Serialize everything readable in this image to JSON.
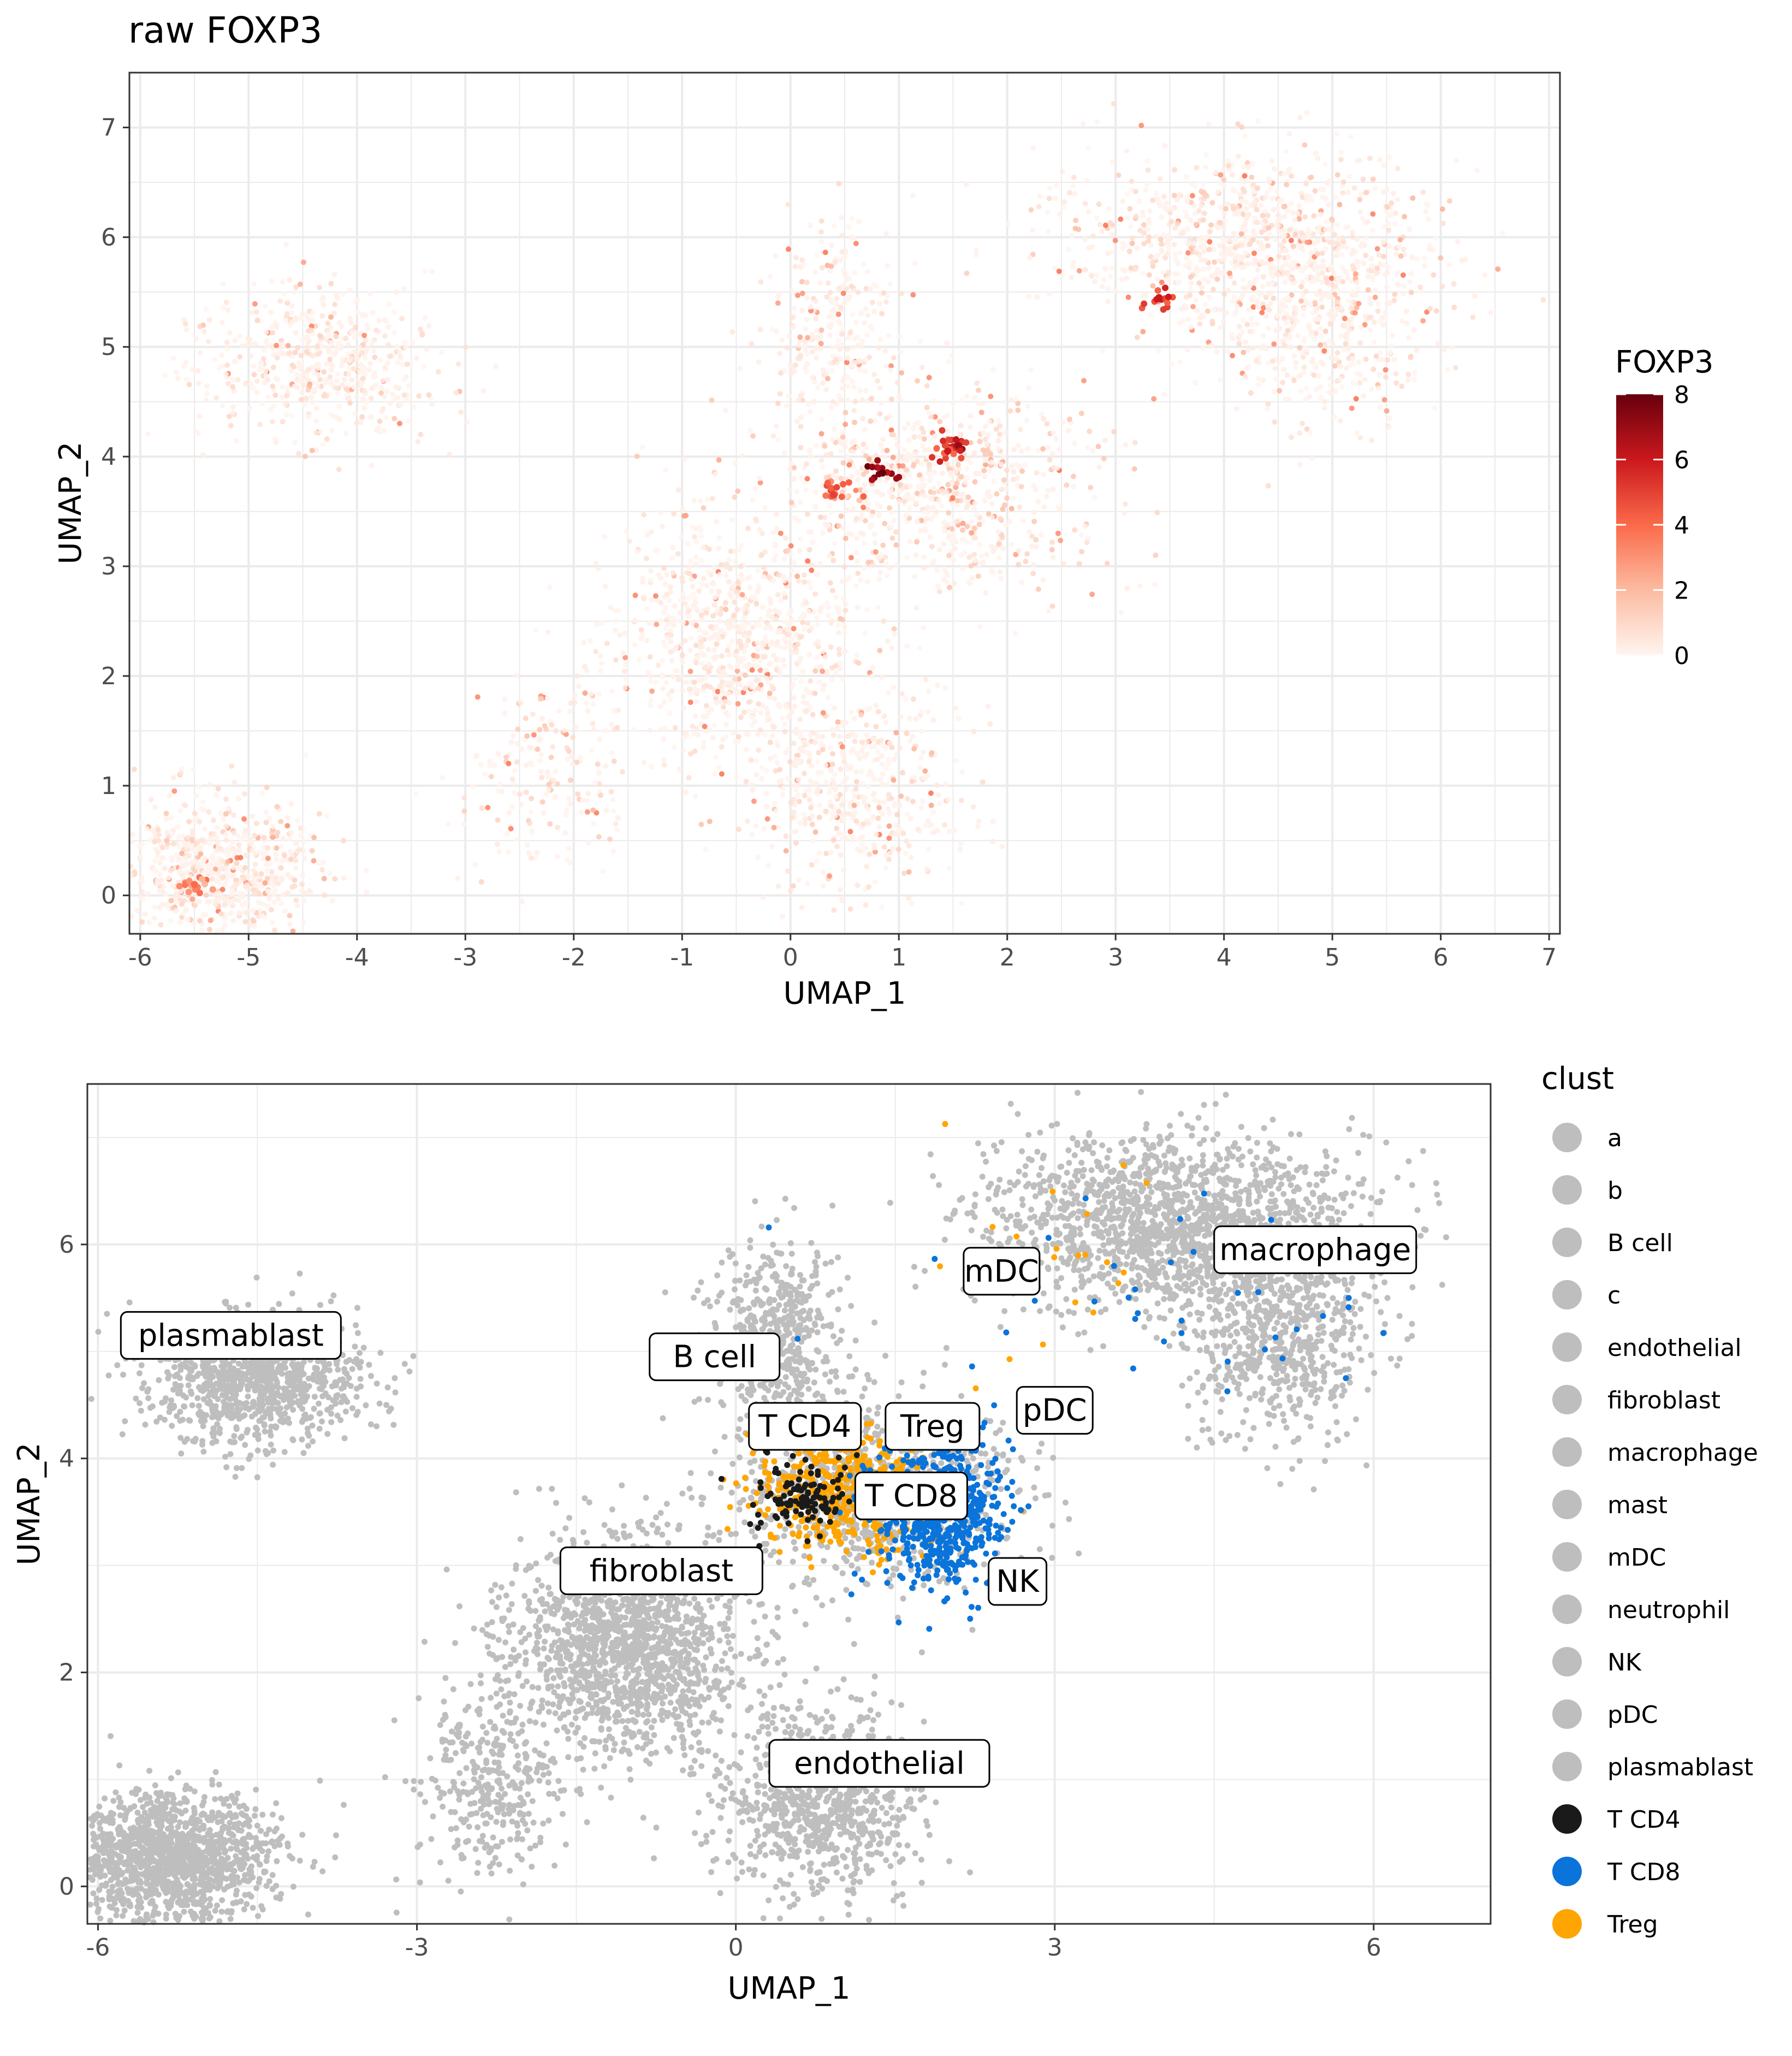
{
  "chart_data": [
    {
      "type": "scatter",
      "title": "raw FOXP3",
      "xlabel": "UMAP_1",
      "ylabel": "UMAP_2",
      "xlim": [
        -6.1,
        7.1
      ],
      "ylim": [
        -0.35,
        7.5
      ],
      "x_ticks": [
        -6,
        -5,
        -4,
        -3,
        -2,
        -1,
        0,
        1,
        2,
        3,
        4,
        5,
        6,
        7
      ],
      "y_ticks": [
        0,
        1,
        2,
        3,
        4,
        5,
        6,
        7
      ],
      "grid": true,
      "color_variable": "FOXP3",
      "colorbar": {
        "title": "FOXP3",
        "min": 0,
        "max": 8,
        "ticks": [
          0,
          2,
          4,
          6,
          8
        ],
        "low_color": "#fff5f0",
        "mid_color": "#ef3b2c",
        "high_color": "#67000d"
      },
      "clusters": [
        {
          "x": -5.3,
          "y": 0.25,
          "sx": 0.5,
          "sy": 0.3,
          "n": 700,
          "mean": 0.7
        },
        {
          "x": -4.3,
          "y": 4.85,
          "sx": 0.55,
          "sy": 0.35,
          "n": 550,
          "mean": 0.6
        },
        {
          "x": -0.5,
          "y": 2.3,
          "sx": 0.6,
          "sy": 0.55,
          "n": 850,
          "mean": 0.5
        },
        {
          "x": -2.3,
          "y": 1.1,
          "sx": 0.35,
          "sy": 0.45,
          "n": 200,
          "mean": 0.8
        },
        {
          "x": 0.6,
          "y": 1.0,
          "sx": 0.5,
          "sy": 0.45,
          "n": 500,
          "mean": 0.6
        },
        {
          "x": 0.4,
          "y": 5.1,
          "sx": 0.3,
          "sy": 0.5,
          "n": 300,
          "mean": 0.5
        },
        {
          "x": 1.3,
          "y": 3.7,
          "sx": 0.75,
          "sy": 0.45,
          "n": 800,
          "mean": 0.9
        },
        {
          "x": 4.2,
          "y": 6.0,
          "sx": 0.9,
          "sy": 0.4,
          "n": 900,
          "mean": 0.8
        },
        {
          "x": 4.9,
          "y": 5.2,
          "sx": 0.5,
          "sy": 0.45,
          "n": 450,
          "mean": 0.6
        }
      ],
      "hotspots": [
        {
          "x": 1.55,
          "y": 4.1,
          "value": 7.0
        },
        {
          "x": 1.45,
          "y": 4.05,
          "value": 6.0
        },
        {
          "x": 0.85,
          "y": 3.85,
          "value": 8.0
        },
        {
          "x": 3.4,
          "y": 5.45,
          "value": 6.0
        },
        {
          "x": 0.4,
          "y": 3.65,
          "value": 5.0
        },
        {
          "x": -5.5,
          "y": 0.1,
          "value": 4.0
        }
      ]
    },
    {
      "type": "scatter",
      "xlabel": "UMAP_1",
      "ylabel": "UMAP_2",
      "xlim": [
        -6.1,
        7.1
      ],
      "ylim": [
        -0.35,
        7.5
      ],
      "x_ticks": [
        -6,
        -3,
        0,
        3,
        6
      ],
      "y_ticks": [
        0,
        2,
        4,
        6
      ],
      "grid": true,
      "legend": {
        "title": "clust",
        "placement": "right",
        "items": [
          {
            "label": "a",
            "color": "#bebebe"
          },
          {
            "label": "b",
            "color": "#bebebe"
          },
          {
            "label": "B cell",
            "color": "#bebebe"
          },
          {
            "label": "c",
            "color": "#bebebe"
          },
          {
            "label": "endothelial",
            "color": "#bebebe"
          },
          {
            "label": "fibroblast",
            "color": "#bebebe"
          },
          {
            "label": "macrophage",
            "color": "#bebebe"
          },
          {
            "label": "mast",
            "color": "#bebebe"
          },
          {
            "label": "mDC",
            "color": "#bebebe"
          },
          {
            "label": "neutrophil",
            "color": "#bebebe"
          },
          {
            "label": "NK",
            "color": "#bebebe"
          },
          {
            "label": "pDC",
            "color": "#bebebe"
          },
          {
            "label": "plasmablast",
            "color": "#bebebe"
          },
          {
            "label": "T CD4",
            "color": "#1a1a1a"
          },
          {
            "label": "T CD8",
            "color": "#0a74da"
          },
          {
            "label": "Treg",
            "color": "#ffa500"
          }
        ]
      },
      "clusters": [
        {
          "x": -5.3,
          "y": 0.25,
          "sx": 0.5,
          "sy": 0.3,
          "n": 1400,
          "group": "grey"
        },
        {
          "x": -4.5,
          "y": 4.75,
          "sx": 0.5,
          "sy": 0.3,
          "n": 1000,
          "group": "grey"
        },
        {
          "x": -1.0,
          "y": 2.25,
          "sx": 0.55,
          "sy": 0.5,
          "n": 1500,
          "group": "grey"
        },
        {
          "x": -2.3,
          "y": 1.0,
          "sx": 0.35,
          "sy": 0.45,
          "n": 350,
          "group": "grey"
        },
        {
          "x": 0.8,
          "y": 0.8,
          "sx": 0.45,
          "sy": 0.45,
          "n": 900,
          "group": "grey"
        },
        {
          "x": 0.4,
          "y": 5.1,
          "sx": 0.3,
          "sy": 0.45,
          "n": 500,
          "group": "grey"
        },
        {
          "x": 1.3,
          "y": 3.75,
          "sx": 0.7,
          "sy": 0.45,
          "n": 900,
          "group": "grey"
        },
        {
          "x": 4.1,
          "y": 6.2,
          "sx": 0.9,
          "sy": 0.4,
          "n": 1600,
          "group": "grey"
        },
        {
          "x": 5.1,
          "y": 5.2,
          "sx": 0.45,
          "sy": 0.5,
          "n": 700,
          "group": "grey"
        },
        {
          "x": 1.0,
          "y": 3.7,
          "sx": 0.4,
          "sy": 0.3,
          "n": 450,
          "group": "Treg"
        },
        {
          "x": 1.9,
          "y": 3.5,
          "sx": 0.3,
          "sy": 0.35,
          "n": 650,
          "group": "T CD8"
        },
        {
          "x": 0.6,
          "y": 3.65,
          "sx": 0.25,
          "sy": 0.2,
          "n": 120,
          "group": "T CD4"
        },
        {
          "x": 4.0,
          "y": 5.5,
          "sx": 1.2,
          "sy": 0.6,
          "n": 40,
          "group": "T CD8"
        },
        {
          "x": 3.0,
          "y": 5.8,
          "sx": 0.6,
          "sy": 0.5,
          "n": 25,
          "group": "Treg"
        }
      ],
      "annotations": [
        {
          "label": "plasmablast",
          "x": -4.75,
          "y": 5.15
        },
        {
          "label": "B cell",
          "x": -0.2,
          "y": 4.95
        },
        {
          "label": "mDC",
          "x": 2.5,
          "y": 5.75
        },
        {
          "label": "macrophage",
          "x": 5.45,
          "y": 5.95
        },
        {
          "label": "pDC",
          "x": 3.0,
          "y": 4.45
        },
        {
          "label": "T CD4",
          "x": 0.65,
          "y": 4.3
        },
        {
          "label": "Treg",
          "x": 1.85,
          "y": 4.3
        },
        {
          "label": "T CD8",
          "x": 1.65,
          "y": 3.65
        },
        {
          "label": "NK",
          "x": 2.65,
          "y": 2.85
        },
        {
          "label": "fibroblast",
          "x": -0.7,
          "y": 2.95
        },
        {
          "label": "endothelial",
          "x": 1.35,
          "y": 1.15
        }
      ]
    }
  ]
}
